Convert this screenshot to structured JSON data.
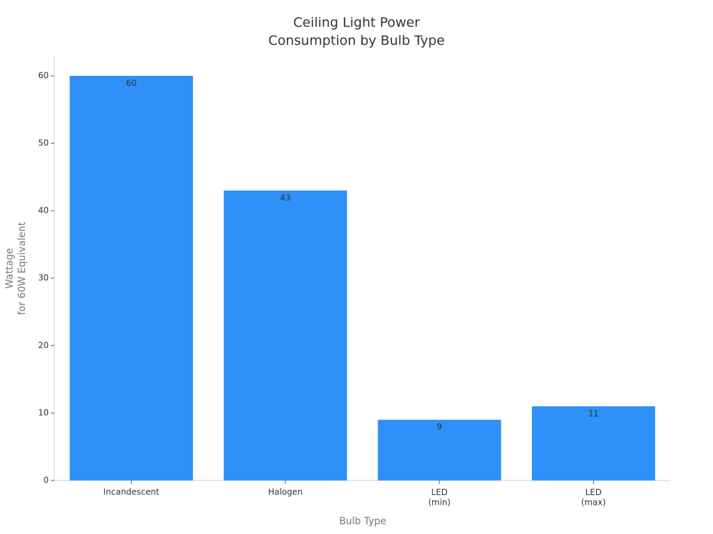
{
  "chart_data": {
    "type": "bar",
    "title": [
      "Ceiling Light Power",
      "Consumption by Bulb Type"
    ],
    "x_label": "Bulb Type",
    "y_label": [
      "Wattage",
      "for 60W Equivalent"
    ],
    "categories": [
      "Incandescent",
      "Halogen",
      "LED\n(min)",
      "LED\n(max)"
    ],
    "values": [
      60,
      43,
      9,
      11
    ],
    "color": "#2e90f8",
    "ylim": [
      0,
      63
    ],
    "yticks": [
      0,
      10,
      20,
      30,
      40,
      50,
      60
    ],
    "grid": false
  }
}
